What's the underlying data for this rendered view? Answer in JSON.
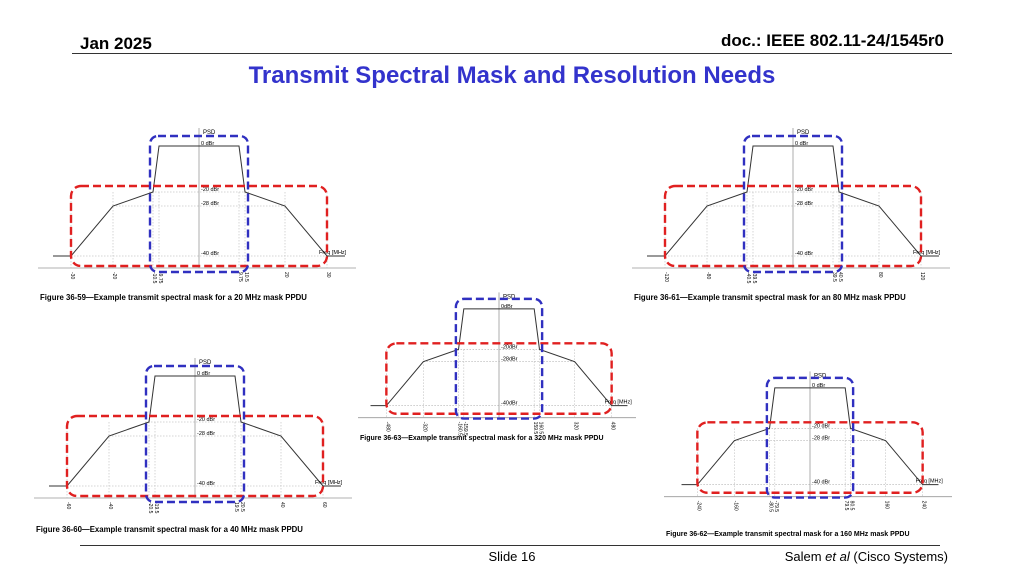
{
  "header": {
    "date": "Jan 2025",
    "doc": "doc.: IEEE 802.11-24/1545r0"
  },
  "title": "Transmit Spectral Mask and Resolution Needs",
  "footer": {
    "slide": "Slide 16",
    "author": "Salem",
    "author_etal": "et al",
    "affiliation": "(Cisco Systems)"
  },
  "colors": {
    "title": "#3333cc",
    "red_box": "#e02020",
    "blue_box": "#3030c0",
    "mask_line": "#333333"
  },
  "figures": [
    {
      "id": "fig-20",
      "caption": "Figure 36-59—Example transmit spectral mask for a 20 MHz mask PPDU",
      "psd_label": "PSD",
      "freq_label": "Freq [MHz]",
      "level_labels": [
        "0 dBr",
        "-20 dBr",
        "-28 dBr",
        "-40 dBr"
      ],
      "x_ticks": [
        "-30",
        "-20",
        "-10.5",
        "-9.75",
        "9.75",
        "10.5",
        "20",
        "30"
      ]
    },
    {
      "id": "fig-80",
      "caption": "Figure 36-61—Example transmit spectral mask for an 80 MHz mask PPDU",
      "psd_label": "PSD",
      "freq_label": "Freq [MHz]",
      "level_labels": [
        "0 dBr",
        "-20 dBr",
        "-28 dBr",
        "-40 dBr"
      ],
      "x_ticks": [
        "-120",
        "-80",
        "-40.5",
        "-39.5",
        "39.5",
        "40.5",
        "80",
        "120"
      ]
    },
    {
      "id": "fig-320",
      "caption": "Figure 36-63—Example transmit spectral mask for a 320 MHz mask PPDU",
      "psd_label": "PSD",
      "freq_label": "Freq [MHz]",
      "level_labels": [
        "0dBr",
        "-20dBr",
        "-28dBr",
        "-40dBr"
      ],
      "x_ticks": [
        "-480",
        "-320",
        "-160.5",
        "-159.5",
        "159.5",
        "160.5",
        "320",
        "480"
      ]
    },
    {
      "id": "fig-40",
      "caption": "Figure 36-60—Example transmit spectral mask for a 40 MHz mask PPDU",
      "psd_label": "PSD",
      "freq_label": "Freq [MHz]",
      "level_labels": [
        "0 dBr",
        "-20 dBr",
        "-28 dBr",
        "-40 dBr"
      ],
      "x_ticks": [
        "-60",
        "-40",
        "-20.5",
        "-19.5",
        "19.5",
        "20.5",
        "40",
        "60"
      ]
    },
    {
      "id": "fig-160",
      "caption": "Figure 36-62—Example transmit spectral mask for a 160 MHz mask PPDU",
      "psd_label": "PSD",
      "freq_label": "Freq [MHz]",
      "level_labels": [
        "0 dBr",
        "-20 dBr",
        "-28 dBr",
        "-40 dBr"
      ],
      "x_ticks": [
        "-240",
        "-160",
        "-80.5",
        "-79.5",
        "79.5",
        "80.5",
        "160",
        "240"
      ]
    }
  ]
}
